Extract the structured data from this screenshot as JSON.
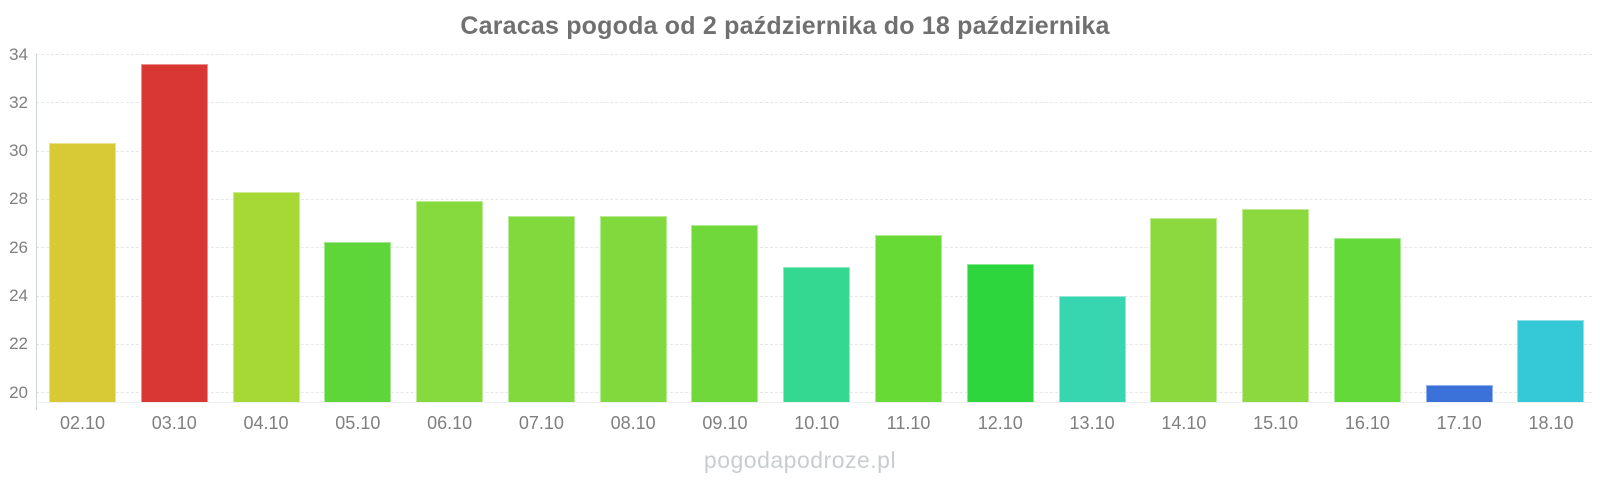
{
  "page": {
    "background_color": "#ffffff"
  },
  "watermark": {
    "text": "pogodapodroze.pl",
    "color": "#c9cdcf"
  },
  "chart_data": {
    "type": "bar",
    "title": "Caracas pogoda od 2 października do 18 października",
    "xlabel": "",
    "ylabel": "",
    "categories": [
      "02.10",
      "03.10",
      "04.10",
      "05.10",
      "06.10",
      "07.10",
      "08.10",
      "09.10",
      "10.10",
      "11.10",
      "12.10",
      "13.10",
      "14.10",
      "15.10",
      "16.10",
      "17.10",
      "18.10"
    ],
    "values": [
      30.3,
      33.6,
      28.3,
      26.2,
      27.9,
      27.3,
      27.3,
      26.9,
      25.2,
      26.5,
      25.3,
      24.0,
      27.2,
      27.6,
      26.4,
      20.3,
      23.0
    ],
    "bar_colors": [
      "#d8ca35",
      "#d83733",
      "#a6d936",
      "#5ed639",
      "#87da3e",
      "#80d93d",
      "#80d93d",
      "#70d83b",
      "#35d890",
      "#68da35",
      "#2dd63d",
      "#38d6b0",
      "#8cd93f",
      "#8cd93f",
      "#64d93a",
      "#3b72d9",
      "#35c9d8"
    ],
    "yticks": [
      20,
      22,
      24,
      26,
      28,
      30,
      32,
      34
    ],
    "ylim": [
      19.6,
      34
    ],
    "grid": "horizontal-dashed",
    "legend": "none",
    "style": {
      "title_color": "#707070",
      "tick_label_color": "#7f7f7f",
      "grid_color": "#e7e7e7",
      "axis_line_color": "#cfd4d6"
    }
  }
}
